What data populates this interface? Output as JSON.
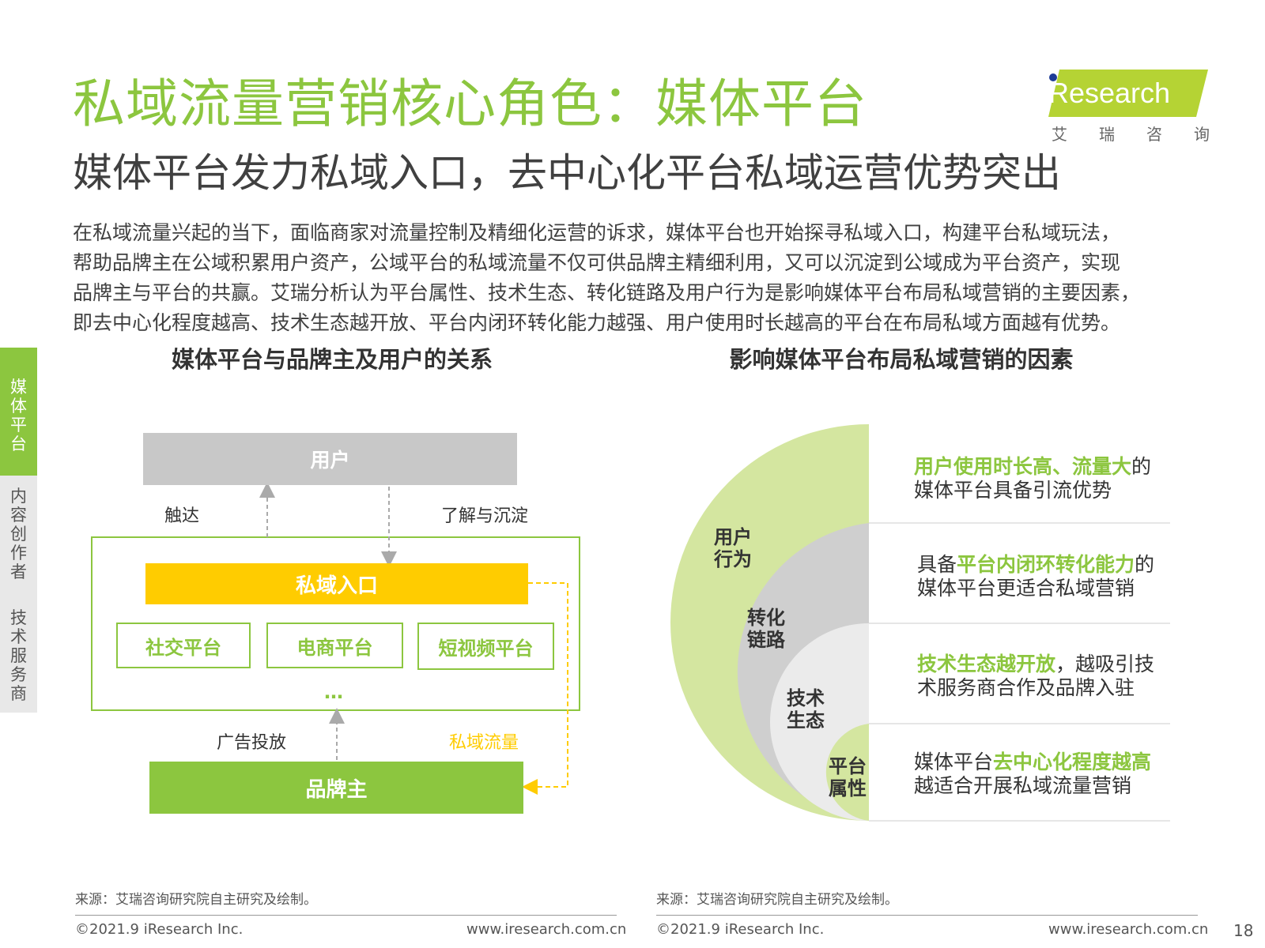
{
  "title": "私域流量营销核心角色：媒体平台",
  "subtitle": "媒体平台发力私域入口，去中心化平台私域运营优势突出",
  "intro_lines": [
    "在私域流量兴起的当下，面临商家对流量控制及精细化运营的诉求，媒体平台也开始探寻私域入口，构建平台私域玩法，",
    "帮助品牌主在公域积累用户资产，公域平台的私域流量不仅可供品牌主精细利用，又可以沉淀到公域成为平台资产，实现",
    "品牌主与平台的共赢。艾瑞分析认为平台属性、技术生态、转化链路及用户行为是影响媒体平台布局私域营销的主要因素，",
    "即去中心化程度越高、技术生态越开放、平台内闭环转化能力越强、用户使用时长越高的平台在布局私域方面越有优势。"
  ],
  "logo": {
    "brand": "iResearch",
    "chinese": [
      "艾",
      "瑞",
      "咨",
      "询"
    ]
  },
  "sidebar": {
    "items": [
      "媒体平台",
      "内容创作者",
      "技术服务商"
    ]
  },
  "colors": {
    "green": "#8cc63f",
    "light_green": "#d4e6a0",
    "yellow": "#ffcc00",
    "gray": "#c8c8c8"
  },
  "left_section": {
    "heading": "媒体平台与品牌主及用户的关系",
    "user_box": "用户",
    "reach_label": "触达",
    "understand_label": "了解与沉淀",
    "private_entry": "私域入口",
    "platforms": [
      "社交平台",
      "电商平台",
      "短视频平台"
    ],
    "ellipsis": "…",
    "ad_label": "广告投放",
    "private_traffic_label": "私域流量",
    "brand_box": "品牌主"
  },
  "right_section": {
    "heading": "影响媒体平台布局私域营销的因素",
    "rings": [
      "用户行为",
      "转化链路",
      "技术生态",
      "平台属性"
    ],
    "factors": [
      {
        "highlight": "用户使用时长高、流量大",
        "rest": "的",
        "line2": "媒体平台具备引流优势"
      },
      {
        "pre": "具备",
        "highlight": "平台内闭环转化能力",
        "rest": "的",
        "line2": "媒体平台更适合私域营销"
      },
      {
        "highlight": "技术生态越开放",
        "rest": "，越吸引技",
        "line2": "术服务商合作及品牌入驻"
      },
      {
        "pre": "媒体平台",
        "highlight": "去中心化程度越高",
        "line2": "越适合开展私域流量营销"
      }
    ]
  },
  "footer": {
    "source": "来源：艾瑞咨询研究院自主研究及绘制。",
    "copyright": "©2021.9 iResearch Inc.",
    "website": "www.iresearch.com.cn",
    "page_number": "18"
  }
}
